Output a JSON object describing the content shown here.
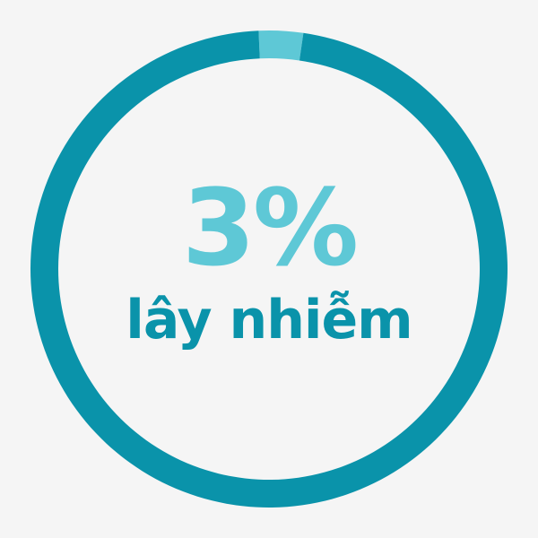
{
  "chart_data": {
    "type": "pie",
    "values": [
      3,
      97
    ],
    "value_label": "3%",
    "caption": "lây nhiễm",
    "colors": {
      "highlight": "#5ec8d6",
      "remainder": "#0a93aa",
      "background": "#f5f5f5"
    }
  }
}
